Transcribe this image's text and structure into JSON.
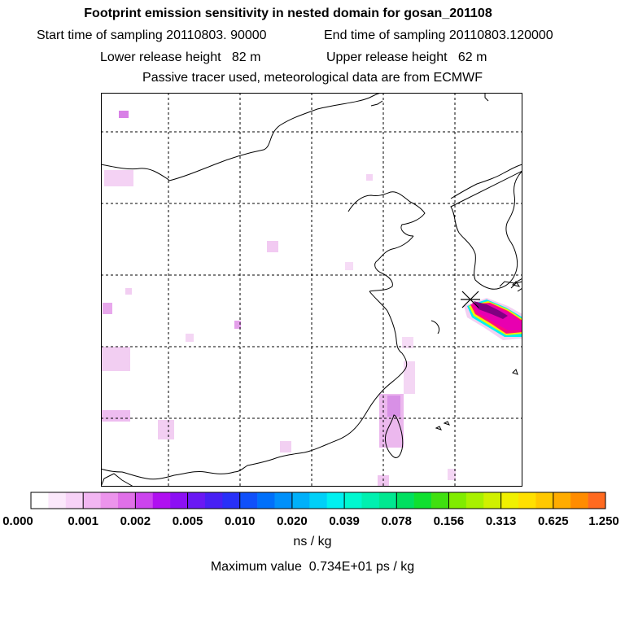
{
  "header": {
    "title": "Footprint emission sensitivity in nested domain for gosan_201108",
    "start_label": "Start time of sampling 20110803. 90000",
    "end_label": "End time of sampling 20110803.120000",
    "lower_height": "Lower release height   82 m",
    "upper_height": "Upper release height   62 m",
    "tracer_note": "Passive tracer used, meteorological data are from ECMWF"
  },
  "colorbar": {
    "tick_labels": [
      "0.000",
      "0.001",
      "0.002",
      "0.005",
      "0.010",
      "0.020",
      "0.039",
      "0.078",
      "0.156",
      "0.313",
      "0.625",
      "1.250"
    ],
    "colors": [
      "#ffffff",
      "#fbe8fb",
      "#f7d2f7",
      "#f2b6f2",
      "#ec94ec",
      "#e070e8",
      "#cc44ee",
      "#b010f0",
      "#8c10f4",
      "#6a18f4",
      "#4820f4",
      "#2830f8",
      "#1050fa",
      "#0070fa",
      "#0090fa",
      "#00b0fa",
      "#00d0f8",
      "#00f0f0",
      "#00f8d0",
      "#00f0b0",
      "#00e890",
      "#00e060",
      "#10e030",
      "#40e010",
      "#80ec00",
      "#a8f000",
      "#d0f000",
      "#f0f000",
      "#ffe000",
      "#ffc800",
      "#ffac00",
      "#ff8c00",
      "#ff6a20",
      "#ff4040",
      "#ff2060",
      "#ff0880",
      "#f800a0",
      "#e800b0",
      "#d800b8",
      "#c000b0",
      "#a000a0",
      "#800080"
    ],
    "unit": "ns / kg",
    "max_value": "Maximum value  0.734E+01 ps / kg"
  }
}
